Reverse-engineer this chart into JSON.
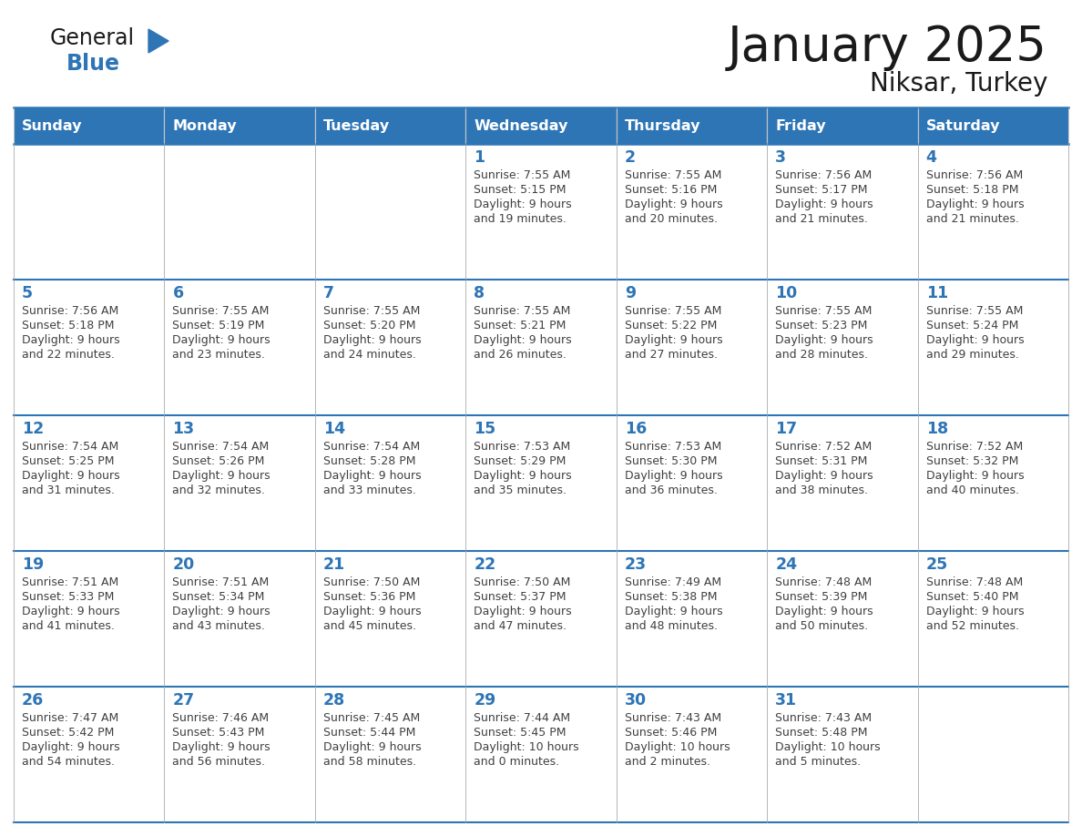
{
  "title": "January 2025",
  "subtitle": "Niksar, Turkey",
  "header_bg": "#2E75B6",
  "header_text_color": "#FFFFFF",
  "day_names": [
    "Sunday",
    "Monday",
    "Tuesday",
    "Wednesday",
    "Thursday",
    "Friday",
    "Saturday"
  ],
  "line_color": "#2E75B6",
  "day_number_color": "#2E75B6",
  "text_color": "#404040",
  "logo_general_color": "#1a1a1a",
  "logo_blue_color": "#2E75B6",
  "calendar": [
    [
      {
        "day": null,
        "sunrise": null,
        "sunset": null,
        "daylight": null
      },
      {
        "day": null,
        "sunrise": null,
        "sunset": null,
        "daylight": null
      },
      {
        "day": null,
        "sunrise": null,
        "sunset": null,
        "daylight": null
      },
      {
        "day": 1,
        "sunrise": "7:55 AM",
        "sunset": "5:15 PM",
        "daylight": "9 hours\nand 19 minutes."
      },
      {
        "day": 2,
        "sunrise": "7:55 AM",
        "sunset": "5:16 PM",
        "daylight": "9 hours\nand 20 minutes."
      },
      {
        "day": 3,
        "sunrise": "7:56 AM",
        "sunset": "5:17 PM",
        "daylight": "9 hours\nand 21 minutes."
      },
      {
        "day": 4,
        "sunrise": "7:56 AM",
        "sunset": "5:18 PM",
        "daylight": "9 hours\nand 21 minutes."
      }
    ],
    [
      {
        "day": 5,
        "sunrise": "7:56 AM",
        "sunset": "5:18 PM",
        "daylight": "9 hours\nand 22 minutes."
      },
      {
        "day": 6,
        "sunrise": "7:55 AM",
        "sunset": "5:19 PM",
        "daylight": "9 hours\nand 23 minutes."
      },
      {
        "day": 7,
        "sunrise": "7:55 AM",
        "sunset": "5:20 PM",
        "daylight": "9 hours\nand 24 minutes."
      },
      {
        "day": 8,
        "sunrise": "7:55 AM",
        "sunset": "5:21 PM",
        "daylight": "9 hours\nand 26 minutes."
      },
      {
        "day": 9,
        "sunrise": "7:55 AM",
        "sunset": "5:22 PM",
        "daylight": "9 hours\nand 27 minutes."
      },
      {
        "day": 10,
        "sunrise": "7:55 AM",
        "sunset": "5:23 PM",
        "daylight": "9 hours\nand 28 minutes."
      },
      {
        "day": 11,
        "sunrise": "7:55 AM",
        "sunset": "5:24 PM",
        "daylight": "9 hours\nand 29 minutes."
      }
    ],
    [
      {
        "day": 12,
        "sunrise": "7:54 AM",
        "sunset": "5:25 PM",
        "daylight": "9 hours\nand 31 minutes."
      },
      {
        "day": 13,
        "sunrise": "7:54 AM",
        "sunset": "5:26 PM",
        "daylight": "9 hours\nand 32 minutes."
      },
      {
        "day": 14,
        "sunrise": "7:54 AM",
        "sunset": "5:28 PM",
        "daylight": "9 hours\nand 33 minutes."
      },
      {
        "day": 15,
        "sunrise": "7:53 AM",
        "sunset": "5:29 PM",
        "daylight": "9 hours\nand 35 minutes."
      },
      {
        "day": 16,
        "sunrise": "7:53 AM",
        "sunset": "5:30 PM",
        "daylight": "9 hours\nand 36 minutes."
      },
      {
        "day": 17,
        "sunrise": "7:52 AM",
        "sunset": "5:31 PM",
        "daylight": "9 hours\nand 38 minutes."
      },
      {
        "day": 18,
        "sunrise": "7:52 AM",
        "sunset": "5:32 PM",
        "daylight": "9 hours\nand 40 minutes."
      }
    ],
    [
      {
        "day": 19,
        "sunrise": "7:51 AM",
        "sunset": "5:33 PM",
        "daylight": "9 hours\nand 41 minutes."
      },
      {
        "day": 20,
        "sunrise": "7:51 AM",
        "sunset": "5:34 PM",
        "daylight": "9 hours\nand 43 minutes."
      },
      {
        "day": 21,
        "sunrise": "7:50 AM",
        "sunset": "5:36 PM",
        "daylight": "9 hours\nand 45 minutes."
      },
      {
        "day": 22,
        "sunrise": "7:50 AM",
        "sunset": "5:37 PM",
        "daylight": "9 hours\nand 47 minutes."
      },
      {
        "day": 23,
        "sunrise": "7:49 AM",
        "sunset": "5:38 PM",
        "daylight": "9 hours\nand 48 minutes."
      },
      {
        "day": 24,
        "sunrise": "7:48 AM",
        "sunset": "5:39 PM",
        "daylight": "9 hours\nand 50 minutes."
      },
      {
        "day": 25,
        "sunrise": "7:48 AM",
        "sunset": "5:40 PM",
        "daylight": "9 hours\nand 52 minutes."
      }
    ],
    [
      {
        "day": 26,
        "sunrise": "7:47 AM",
        "sunset": "5:42 PM",
        "daylight": "9 hours\nand 54 minutes."
      },
      {
        "day": 27,
        "sunrise": "7:46 AM",
        "sunset": "5:43 PM",
        "daylight": "9 hours\nand 56 minutes."
      },
      {
        "day": 28,
        "sunrise": "7:45 AM",
        "sunset": "5:44 PM",
        "daylight": "9 hours\nand 58 minutes."
      },
      {
        "day": 29,
        "sunrise": "7:44 AM",
        "sunset": "5:45 PM",
        "daylight": "10 hours\nand 0 minutes."
      },
      {
        "day": 30,
        "sunrise": "7:43 AM",
        "sunset": "5:46 PM",
        "daylight": "10 hours\nand 2 minutes."
      },
      {
        "day": 31,
        "sunrise": "7:43 AM",
        "sunset": "5:48 PM",
        "daylight": "10 hours\nand 5 minutes."
      },
      {
        "day": null,
        "sunrise": null,
        "sunset": null,
        "daylight": null
      }
    ]
  ]
}
